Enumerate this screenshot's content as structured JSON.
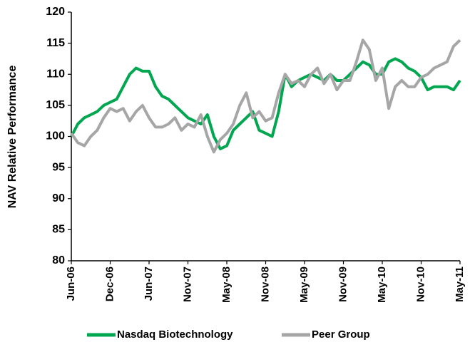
{
  "chart_data": {
    "type": "line",
    "y_label": "NAV Relative Performance",
    "categories": [
      "Jun-06",
      null,
      null,
      null,
      null,
      null,
      "Dec-06",
      null,
      null,
      null,
      null,
      null,
      "Jun-07",
      null,
      null,
      null,
      null,
      null,
      "Nov-07",
      null,
      null,
      null,
      null,
      null,
      "May-08",
      null,
      null,
      null,
      null,
      null,
      "Nov-08",
      null,
      null,
      null,
      null,
      null,
      "May-09",
      null,
      null,
      null,
      null,
      null,
      "Nov-09",
      null,
      null,
      null,
      null,
      null,
      "May-10",
      null,
      null,
      null,
      null,
      null,
      "Nov-10",
      null,
      null,
      null,
      null,
      null,
      "May-11"
    ],
    "series": [
      {
        "name": "Nasdaq Biotechnology",
        "color": "#00a650",
        "values": [
          100,
          102,
          103,
          103.5,
          104,
          105,
          105.5,
          106,
          108,
          110,
          111,
          110.5,
          110.5,
          108,
          106.5,
          106,
          105,
          104,
          103,
          102.5,
          102,
          103.5,
          100,
          98,
          98.5,
          101,
          102,
          103,
          104,
          101,
          100.5,
          100,
          104,
          110,
          108,
          109,
          109.5,
          110,
          109.5,
          109,
          110,
          109,
          109,
          110,
          111,
          112,
          111.5,
          110,
          110,
          112,
          112.5,
          112,
          111,
          110.5,
          109.5,
          107.5,
          108,
          108,
          108,
          107.5,
          109
        ]
      },
      {
        "name": "Peer Group",
        "color": "#a6a6a6",
        "values": [
          100.5,
          99,
          98.5,
          100,
          101,
          103,
          104.5,
          104,
          104.5,
          102.5,
          104,
          105,
          103,
          101.5,
          101.5,
          102,
          103,
          101,
          102,
          101.5,
          103.5,
          100,
          97.5,
          99.5,
          100.5,
          102,
          105,
          107,
          103,
          104,
          102.5,
          103,
          107,
          110,
          108.5,
          109,
          108,
          110,
          111,
          108.5,
          110,
          107.5,
          109,
          109,
          112,
          115.5,
          114,
          109,
          111,
          104.5,
          108,
          109,
          108,
          108,
          109.5,
          110,
          111,
          111.5,
          112,
          114.5,
          115.5
        ]
      }
    ],
    "ylim": [
      80,
      120
    ],
    "yticks": [
      80,
      85,
      90,
      95,
      100,
      105,
      110,
      115,
      120
    ],
    "grid": false,
    "legend": "bottom"
  }
}
